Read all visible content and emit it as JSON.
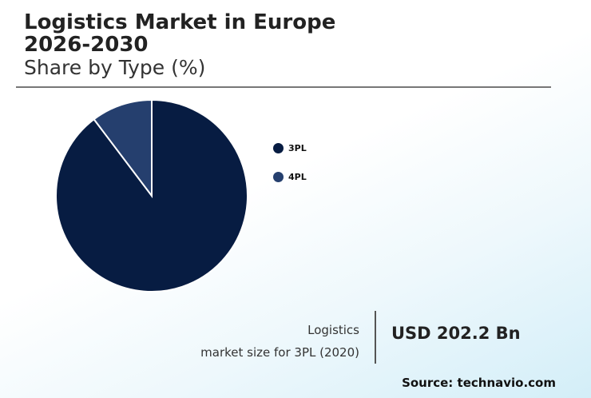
{
  "chart_data": {
    "type": "pie",
    "title": "Logistics Market in Europe 2026-2030",
    "subtitle": "Share by Type (%)",
    "categories": [
      "3PL",
      "4PL"
    ],
    "values": [
      89.7,
      10.3
    ],
    "colors": [
      "#071c42",
      "#253f6e"
    ],
    "legend_position": "right"
  },
  "stat": {
    "label_line1": "Logistics",
    "label_line2": "market size for 3PL (2020)",
    "value": "USD 202.2 Bn"
  },
  "source": "Source: technavio.com"
}
